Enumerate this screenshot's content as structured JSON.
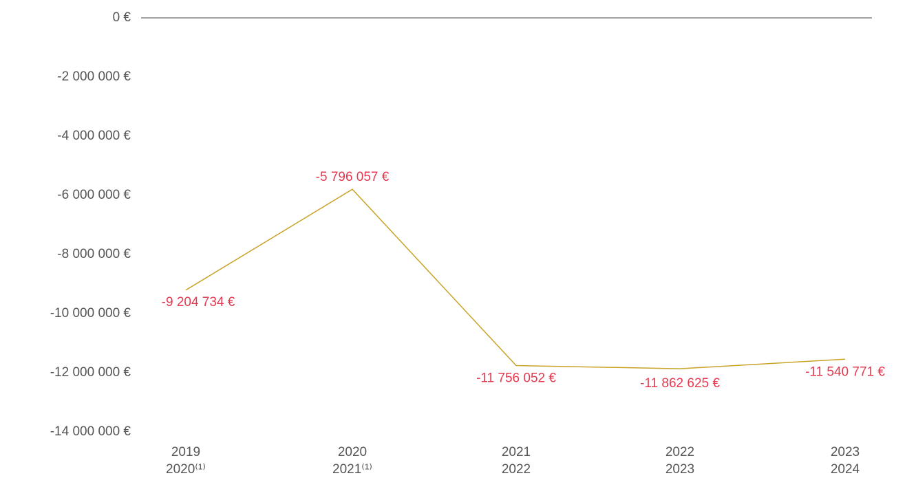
{
  "chart_data": {
    "type": "line",
    "categories": [
      [
        "2019",
        "2020⁽¹⁾"
      ],
      [
        "2020",
        "2021⁽¹⁾"
      ],
      [
        "2021",
        "2022"
      ],
      [
        "2022",
        "2023"
      ],
      [
        "2023",
        "2024"
      ]
    ],
    "series": [
      {
        "color": "#c9a227",
        "values": [
          -9204734,
          -5796057,
          -11756052,
          -11862625,
          -11540771
        ],
        "value_labels": [
          "-9 204 734 €",
          "-5 796 057 €",
          "-11 756 052 €",
          "-11 862 625 €",
          "-11 540 771 €"
        ],
        "label_color": "#e63950"
      }
    ],
    "ylim": [
      -14000000,
      0
    ],
    "yticks": [
      {
        "value": 0,
        "label": "0 €"
      },
      {
        "value": -2000000,
        "label": "-2 000 000 €"
      },
      {
        "value": -4000000,
        "label": "-4 000 000 €"
      },
      {
        "value": -6000000,
        "label": "-6 000 000 €"
      },
      {
        "value": -8000000,
        "label": "-8 000 000 €"
      },
      {
        "value": -10000000,
        "label": "-10 000 000 €"
      },
      {
        "value": -12000000,
        "label": "-12 000 000 €"
      },
      {
        "value": -14000000,
        "label": "-14 000 000 €"
      }
    ]
  }
}
